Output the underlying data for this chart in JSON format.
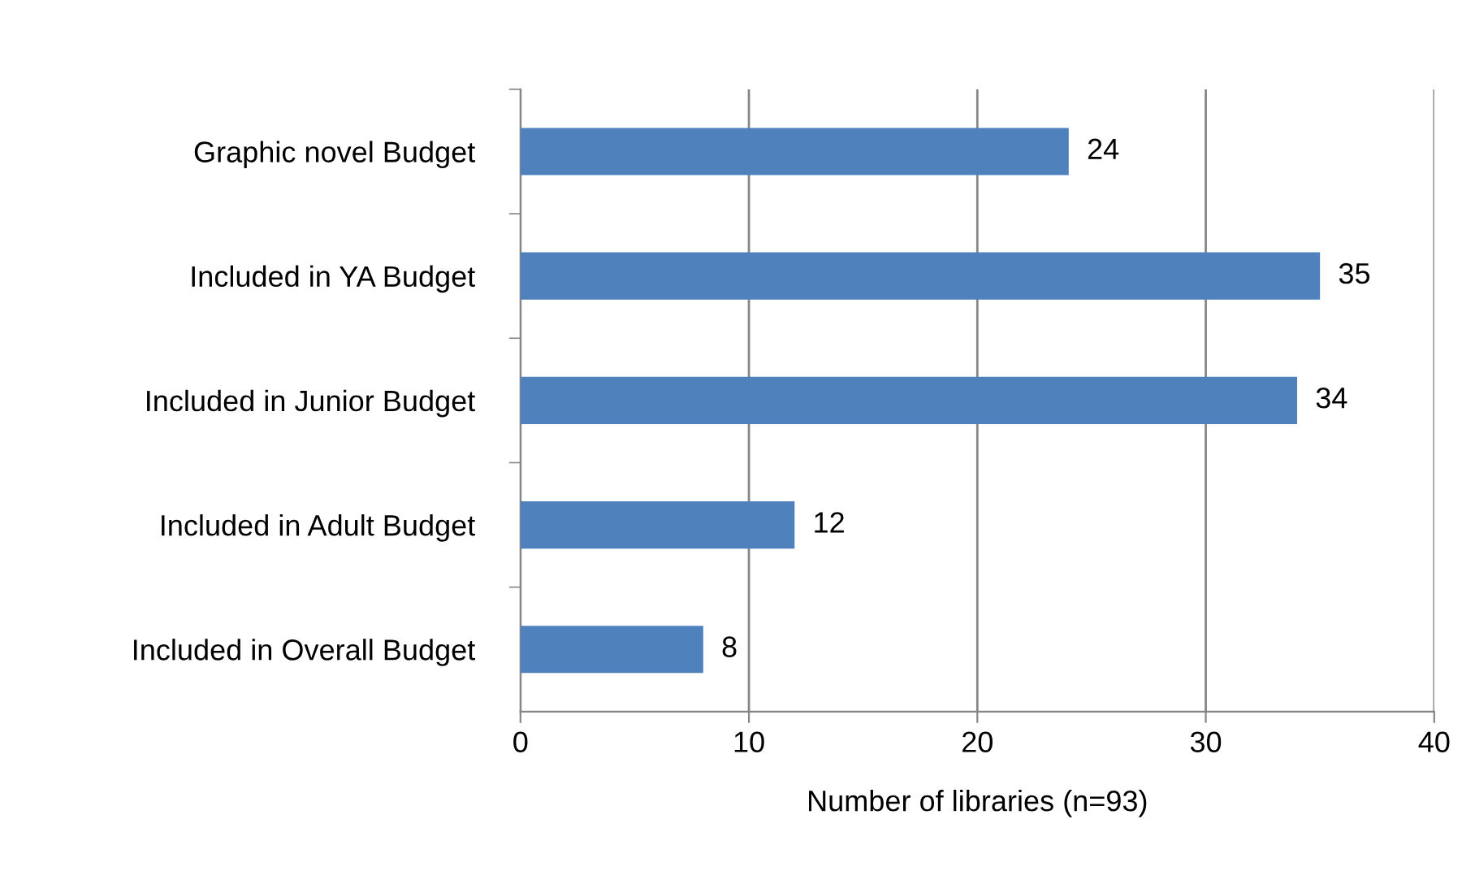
{
  "chart_data": {
    "type": "bar",
    "orientation": "horizontal",
    "categories": [
      "Graphic novel Budget",
      "Included in YA Budget",
      "Included in Junior Budget",
      "Included in Adult Budget",
      "Included in Overall Budget"
    ],
    "values": [
      24,
      35,
      34,
      12,
      8
    ],
    "color": "#4f81bd",
    "xlabel": "Number of libraries (n=93)",
    "xlim": [
      0,
      40
    ],
    "xticks": [
      0,
      10,
      20,
      30,
      40
    ],
    "grid": "x",
    "data_labels": true,
    "legend": false
  }
}
